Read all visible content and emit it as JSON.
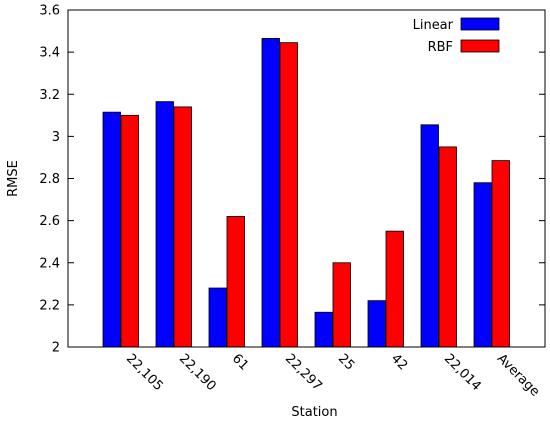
{
  "chart_data": {
    "type": "bar",
    "title": "",
    "xlabel": "Station",
    "ylabel": "RMSE",
    "ylim": [
      2,
      3.6
    ],
    "yticks": [
      2,
      2.2,
      2.4,
      2.6,
      2.8,
      3,
      3.2,
      3.4,
      3.6
    ],
    "ytick_labels": [
      "2",
      "2.2",
      "2.4",
      "2.6",
      "2.8",
      "3",
      "3.2",
      "3.4",
      "3.6"
    ],
    "categories": [
      "22,105",
      "22,190",
      "61",
      "22,297",
      "25",
      "42",
      "22,014",
      "Average"
    ],
    "grid": false,
    "legend_position": "top-right",
    "series": [
      {
        "name": "Linear",
        "color": "#0000ff",
        "values": [
          3.115,
          3.165,
          2.28,
          3.465,
          2.165,
          2.22,
          3.055,
          2.78
        ]
      },
      {
        "name": "RBF",
        "color": "#ff0000",
        "values": [
          3.1,
          3.14,
          2.62,
          3.445,
          2.4,
          2.55,
          2.95,
          2.885
        ]
      }
    ]
  }
}
